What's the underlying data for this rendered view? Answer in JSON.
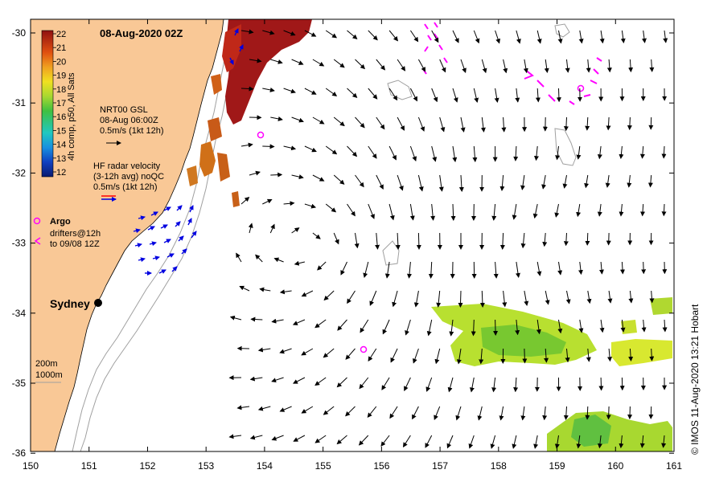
{
  "title": "08-Aug-2020 02Z",
  "credit": "© IMOS 11-Aug-2020 13:21 Hobart",
  "x_ticks": [
    "150",
    "151",
    "152",
    "153",
    "154",
    "155",
    "156",
    "157",
    "158",
    "159",
    "160",
    "161"
  ],
  "y_ticks": [
    "-30",
    "-31",
    "-32",
    "-33",
    "-34",
    "-35",
    "-36"
  ],
  "colorbar": {
    "ticks": [
      "22",
      "21",
      "20",
      "19",
      "18",
      "17",
      "16",
      "15",
      "14",
      "13",
      "12"
    ],
    "label": "4h comp, p50, All Sats"
  },
  "legend": {
    "gsl_1": "NRT00 GSL",
    "gsl_2": "08-Aug 06:00Z",
    "gsl_3": "0.5m/s (1kt 12h)",
    "hf_1": "HF radar velocity",
    "hf_2": "(3-12h avg) noQC",
    "hf_3": "0.5m/s (1kt 12h)",
    "argo": "Argo",
    "drift_1": "drifters@12h",
    "drift_2": "to 09/08 12Z",
    "depth_1": "200m",
    "depth_2": "1000m"
  },
  "city": "Sydney",
  "colors": {
    "land": "#f9c896",
    "argo": "#ff00ff",
    "hf": "#0000e0",
    "warm": "#a01010",
    "cool": "#b5e02a"
  }
}
